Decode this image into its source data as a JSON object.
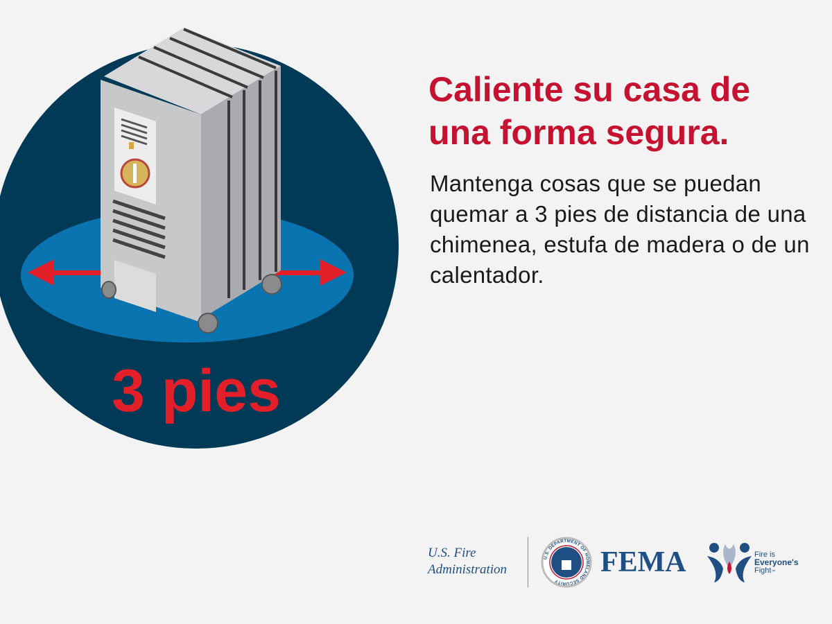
{
  "illustration": {
    "distance_label": "3 pies",
    "colors": {
      "circle": "#003a57",
      "floor": "#0a74b0",
      "arrow": "#e3202a",
      "label": "#e3202a"
    },
    "icons": [
      "space-heater-illustration",
      "double-arrow-icon"
    ]
  },
  "headline": "Caliente su casa de una forma segura.",
  "body": "Mantenga cosas que se puedan quemar a 3 pies de distancia de una chimenea, estufa de madera o de un calentador.",
  "footer": {
    "usfa_line1": "U.S. Fire",
    "usfa_line2": "Administration",
    "dhs_seal_text": "U.S. DEPARTMENT OF HOMELAND SECURITY",
    "fema": "FEMA",
    "campaign_line1": "Fire is",
    "campaign_line2": "Everyone's",
    "campaign_line3": "Fight",
    "campaign_tm": "™"
  },
  "colors": {
    "headline": "#c41230",
    "logo_blue": "#1f4e82",
    "background": "#f3f3f3"
  }
}
